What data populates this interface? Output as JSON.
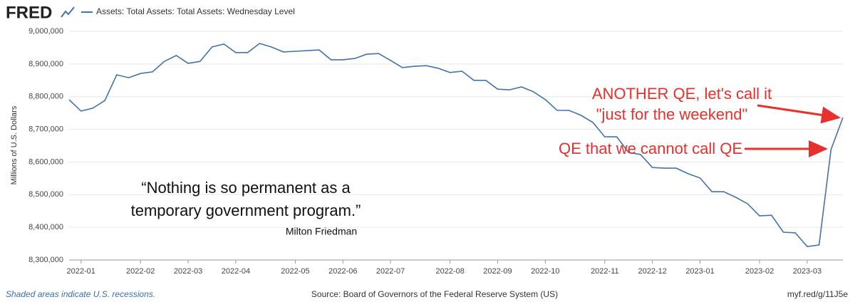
{
  "chart_data": {
    "type": "line",
    "logo": "FRED",
    "ylabel": "Millions of U.S. Dollars",
    "categories": [
      null,
      "2022-01",
      null,
      null,
      null,
      null,
      "2022-02",
      null,
      null,
      null,
      "2022-03",
      null,
      null,
      null,
      "2022-04",
      null,
      null,
      null,
      null,
      "2022-05",
      null,
      null,
      null,
      "2022-06",
      null,
      null,
      null,
      "2022-07",
      null,
      null,
      null,
      null,
      "2022-08",
      null,
      null,
      null,
      "2022-09",
      null,
      null,
      null,
      "2022-10",
      null,
      null,
      null,
      null,
      "2022-11",
      null,
      null,
      null,
      "2022-12",
      null,
      null,
      null,
      "2023-01",
      null,
      null,
      null,
      null,
      "2023-02",
      null,
      null,
      null,
      "2023-03",
      null,
      null,
      null
    ],
    "series": [
      {
        "name": "Assets: Total Assets: Total Assets: Wednesday Level",
        "color": "#4572a7",
        "values": [
          8790700,
          8756000,
          8765000,
          8788000,
          8867000,
          8858000,
          8871000,
          8876000,
          8908000,
          8926000,
          8902000,
          8908000,
          8952000,
          8961000,
          8935000,
          8935000,
          8963000,
          8952000,
          8937000,
          8939000,
          8941000,
          8943000,
          8913000,
          8913000,
          8917000,
          8930000,
          8932000,
          8911000,
          8889000,
          8893000,
          8895000,
          8887000,
          8874000,
          8878000,
          8850000,
          8850000,
          8823000,
          8821000,
          8830000,
          8815000,
          8791000,
          8758000,
          8758000,
          8743000,
          8721000,
          8677000,
          8677000,
          8629000,
          8623000,
          8583000,
          8581000,
          8581000,
          8564000,
          8551000,
          8509000,
          8509000,
          8492000,
          8472000,
          8435000,
          8437000,
          8385000,
          8383000,
          8341000,
          8346000,
          8638000,
          8736000
        ]
      }
    ],
    "ylim": [
      8300000,
      9000000
    ],
    "yticks": [
      {
        "value": 8300000,
        "label": "8,300,000"
      },
      {
        "value": 8400000,
        "label": "8,400,000"
      },
      {
        "value": 8500000,
        "label": "8,500,000"
      },
      {
        "value": 8600000,
        "label": "8,600,000"
      },
      {
        "value": 8700000,
        "label": "8,700,000"
      },
      {
        "value": 8800000,
        "label": "8,800,000"
      },
      {
        "value": 8900000,
        "label": "8,900,000"
      },
      {
        "value": 9000000,
        "label": "9,000,000"
      }
    ],
    "grid": true,
    "annotations": [
      "ANOTHER QE, let's call it",
      "\"just for the weekend\"",
      "QE that we cannot call QE",
      "“Nothing is so permanent as a",
      "temporary government program.”",
      "Milton Friedman"
    ],
    "footer": {
      "left": "Shaded areas indicate U.S. recessions.",
      "center": "Source: Board of Governors of the Federal Reserve System (US)",
      "right": "myf.red/g/11J5e"
    }
  }
}
